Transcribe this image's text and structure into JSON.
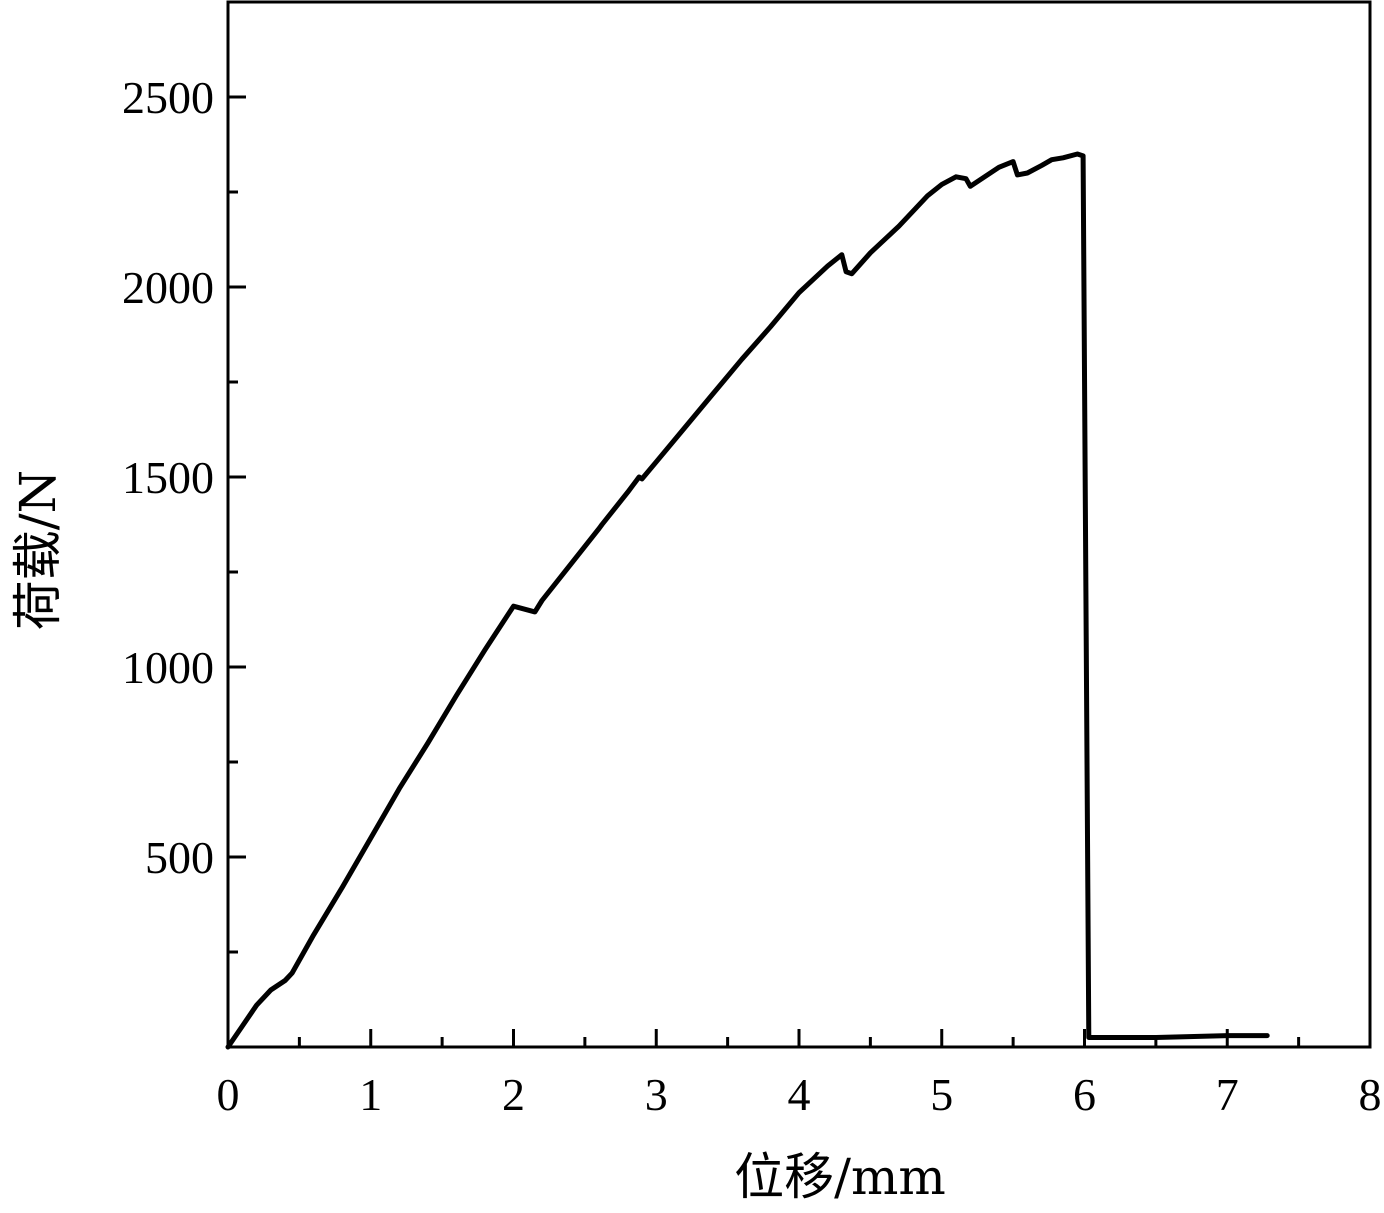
{
  "chart_data": {
    "type": "line",
    "title": "",
    "xlabel": "位移/mm",
    "ylabel": "荷载/N",
    "xlim": [
      0,
      8
    ],
    "ylim": [
      0,
      2750
    ],
    "xticks": [
      "0",
      "1",
      "2",
      "3",
      "4",
      "5",
      "6",
      "7",
      "8"
    ],
    "yticks": [
      "500",
      "1000",
      "1500",
      "2000",
      "2500"
    ],
    "grid": false,
    "legend": "none",
    "line_color": "#000000",
    "series": [
      {
        "x": [
          0,
          0.1,
          0.2,
          0.3,
          0.4,
          0.45,
          0.6,
          0.8,
          1.0,
          1.2,
          1.4,
          1.6,
          1.8,
          2.0,
          2.15,
          2.2,
          2.4,
          2.6,
          2.62,
          2.8,
          2.88,
          2.9,
          3.0,
          3.2,
          3.4,
          3.6,
          3.8,
          4.0,
          4.2,
          4.3,
          4.33,
          4.37,
          4.5,
          4.7,
          4.9,
          5.0,
          5.1,
          5.17,
          5.2,
          5.3,
          5.4,
          5.5,
          5.53,
          5.6,
          5.7,
          5.77,
          5.85,
          5.95,
          5.99,
          6.01,
          6.03,
          6.1,
          6.5,
          7.0,
          7.28
        ],
        "y": [
          0,
          55,
          110,
          150,
          175,
          195,
          295,
          420,
          550,
          680,
          800,
          925,
          1045,
          1160,
          1145,
          1175,
          1270,
          1365,
          1375,
          1460,
          1500,
          1495,
          1540,
          1630,
          1720,
          1810,
          1895,
          1985,
          2055,
          2085,
          2040,
          2035,
          2090,
          2160,
          2240,
          2270,
          2290,
          2285,
          2265,
          2290,
          2315,
          2330,
          2295,
          2300,
          2320,
          2335,
          2340,
          2350,
          2345,
          1200,
          25,
          25,
          25,
          30,
          30
        ]
      }
    ]
  }
}
